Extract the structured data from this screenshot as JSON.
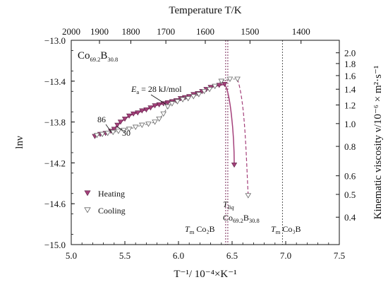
{
  "chart_data": {
    "type": "scatter",
    "title": "",
    "xlabel": "T⁻¹/ 10⁻⁴×K⁻¹",
    "ylabel": "lnν",
    "x_top_label": "Temperature T/K",
    "y_right_label": "Kinematic viscosity ν/10⁻⁶ × m²·s⁻¹",
    "xlim": [
      5.0,
      7.5
    ],
    "ylim": [
      -15.0,
      -13.0
    ],
    "x_ticks": [
      "5.0",
      "5.5",
      "6.0",
      "6.5",
      "7.0",
      "7.5"
    ],
    "y_ticks": [
      "-13.0",
      "-13.4",
      "-13.8",
      "-14.2",
      "-14.6",
      "-15.0"
    ],
    "x_top_ticks": [
      "2000",
      "1900",
      "1800",
      "1700",
      "1600",
      "1500",
      "1400"
    ],
    "y_right_ticks": [
      "2.0",
      "1.8",
      "1.6",
      "1.4",
      "1.2",
      "1.0",
      "0.8",
      "0.6",
      "0.5",
      "0.4"
    ],
    "composition": {
      "base": "Co",
      "co_sub": "69.2",
      "b": "B",
      "b_sub": "30.8"
    },
    "legend": {
      "position": "lower-left",
      "heating": "Heating",
      "cooling": "Cooling"
    },
    "annotations": {
      "ea_prefix": "E",
      "ea_sub": "a",
      "ea_value": " = 28 kJ/mol",
      "label_86": "86",
      "label_30": "30",
      "tliq_T": "T",
      "tliq_sub": "liq",
      "tliq_comp": {
        "base": "Co",
        "co_sub": "69.2",
        "b": "B",
        "b_sub": "30.8"
      },
      "tm1_T": "T",
      "tm1_sub": "m",
      "tm1_comp": "Co₂B",
      "tm2_T": "T",
      "tm2_sub": "m",
      "tm2_comp": "Co₃B"
    },
    "vlines": [
      6.44,
      6.46,
      6.97
    ],
    "colors": {
      "heating": "#a4407a",
      "cooling": "#888888",
      "vline": "#7a2c5a"
    },
    "series": [
      {
        "name": "Heating",
        "marker": "filled-down-triangle",
        "points": [
          [
            5.22,
            -13.94
          ],
          [
            5.27,
            -13.92
          ],
          [
            5.32,
            -13.91
          ],
          [
            5.37,
            -13.89
          ],
          [
            5.4,
            -13.87
          ],
          [
            5.43,
            -13.83
          ],
          [
            5.46,
            -13.8
          ],
          [
            5.5,
            -13.77
          ],
          [
            5.54,
            -13.74
          ],
          [
            5.58,
            -13.72
          ],
          [
            5.62,
            -13.71
          ],
          [
            5.66,
            -13.69
          ],
          [
            5.7,
            -13.68
          ],
          [
            5.74,
            -13.66
          ],
          [
            5.78,
            -13.64
          ],
          [
            5.82,
            -13.63
          ],
          [
            5.86,
            -13.62
          ],
          [
            5.9,
            -13.61
          ],
          [
            5.94,
            -13.6
          ],
          [
            5.98,
            -13.59
          ],
          [
            6.02,
            -13.57
          ],
          [
            6.06,
            -13.56
          ],
          [
            6.1,
            -13.55
          ],
          [
            6.14,
            -13.53
          ],
          [
            6.18,
            -13.52
          ],
          [
            6.22,
            -13.5
          ],
          [
            6.26,
            -13.48
          ],
          [
            6.3,
            -13.46
          ],
          [
            6.34,
            -13.45
          ],
          [
            6.38,
            -13.44
          ],
          [
            6.43,
            -13.43
          ],
          [
            6.52,
            -14.22
          ]
        ]
      },
      {
        "name": "Cooling",
        "marker": "open-down-triangle",
        "points": [
          [
            5.24,
            -13.93
          ],
          [
            5.29,
            -13.92
          ],
          [
            5.34,
            -13.91
          ],
          [
            5.39,
            -13.9
          ],
          [
            5.44,
            -13.89
          ],
          [
            5.49,
            -13.88
          ],
          [
            5.54,
            -13.87
          ],
          [
            5.6,
            -13.85
          ],
          [
            5.66,
            -13.83
          ],
          [
            5.72,
            -13.82
          ],
          [
            5.78,
            -13.8
          ],
          [
            5.82,
            -13.77
          ],
          [
            5.86,
            -13.72
          ],
          [
            5.9,
            -13.65
          ],
          [
            5.94,
            -13.62
          ],
          [
            5.99,
            -13.6
          ],
          [
            6.04,
            -13.58
          ],
          [
            6.09,
            -13.57
          ],
          [
            6.14,
            -13.55
          ],
          [
            6.19,
            -13.53
          ],
          [
            6.24,
            -13.5
          ],
          [
            6.29,
            -13.48
          ],
          [
            6.34,
            -13.45
          ],
          [
            6.4,
            -13.4
          ],
          [
            6.48,
            -13.38
          ],
          [
            6.55,
            -13.38
          ],
          [
            6.65,
            -14.52
          ]
        ]
      }
    ]
  }
}
